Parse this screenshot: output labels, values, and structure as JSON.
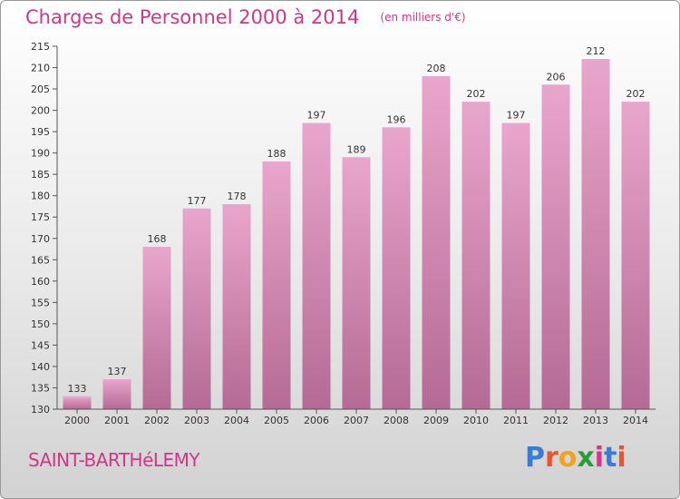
{
  "title": "Charges de Personnel 2000 à 2014",
  "unit_note": "(en milliers d'€)",
  "commune": "SAINT-BARTHéLEMY",
  "logo": {
    "letters": [
      "P",
      "r",
      "o",
      "x",
      "i",
      "t",
      "i"
    ],
    "colors": [
      "#3a7bd5",
      "#e8542f",
      "#f3a21b",
      "#2a9d3a",
      "#d0368a",
      "#3a7bd5",
      "#e8542f"
    ]
  },
  "colors": {
    "bar": "#c97aa8",
    "bar_light": "#e9a6cd",
    "accent": "#d0368a"
  },
  "chart_data": {
    "type": "bar",
    "title": "Charges de Personnel 2000 à 2014",
    "subtitle": "(en milliers d'€)",
    "categories": [
      "2000",
      "2001",
      "2002",
      "2003",
      "2004",
      "2005",
      "2006",
      "2007",
      "2008",
      "2009",
      "2010",
      "2011",
      "2012",
      "2013",
      "2014"
    ],
    "values": [
      133,
      137,
      168,
      177,
      178,
      188,
      197,
      189,
      196,
      208,
      202,
      197,
      206,
      212,
      202
    ],
    "ylim": [
      130,
      215
    ],
    "yticks": [
      130,
      135,
      140,
      145,
      150,
      155,
      160,
      165,
      170,
      175,
      180,
      185,
      190,
      195,
      200,
      205,
      210,
      215
    ],
    "grid": false,
    "data_labels": true
  }
}
